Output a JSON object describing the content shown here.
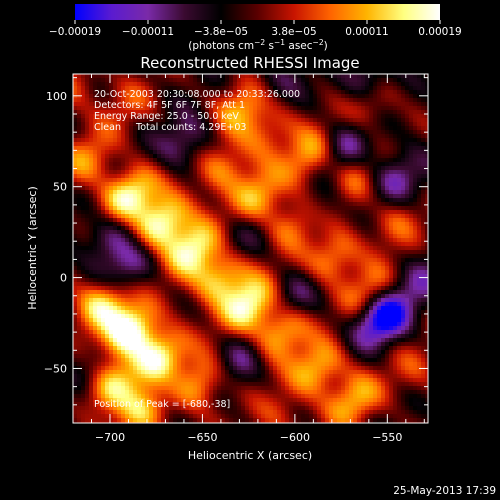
{
  "chart_data": {
    "type": "heatmap",
    "title": "Reconstructed RHESSI Image",
    "xlabel": "Heliocentric X (arcsec)",
    "ylabel": "Heliocentric Y (arcsec)",
    "xlim": [
      -720,
      -528
    ],
    "ylim": [
      -80,
      112
    ],
    "x_ticks": [
      -700,
      -650,
      -600,
      -550
    ],
    "y_ticks": [
      -50,
      0,
      50,
      100
    ],
    "x_tick_labels": [
      "−700",
      "−650",
      "−600",
      "−550"
    ],
    "y_tick_labels": [
      "−50",
      "0",
      "50",
      "100"
    ],
    "colorbar": {
      "range": [
        -0.00019,
        0.00019
      ],
      "tick_labels": [
        "−0.00019",
        "−0.00011",
        "−3.8e−05",
        "3.8e−05",
        "0.00011",
        "0.00019"
      ],
      "unit_label_parts": [
        "(photons cm",
        "−2",
        " s",
        "−1",
        " asec",
        "−2",
        ")"
      ],
      "colors": [
        "#0000ff",
        "#5a1bd0",
        "#7a2aa8",
        "#3a0a30",
        "#000000",
        "#5a0000",
        "#c81400",
        "#ff6400",
        "#ffb400",
        "#ffff80",
        "#ffffff"
      ]
    },
    "annotations": {
      "time_range": "20-Oct-2003 20:30:08.000 to 20:33:26.000",
      "detectors": "Detectors: 4F 5F 6F 7F 8F, Att 1",
      "energy_range": "Energy Range: 25.0 - 50.0 keV",
      "method_and_counts": "Clean     Total counts: 4.29E+03",
      "peak_position": "Position of Peak = [-680,-38]"
    },
    "peak": {
      "x": -680,
      "y": -38
    },
    "blobs": [
      {
        "x": -690,
        "y": 45,
        "v": 0.9
      },
      {
        "x": -672,
        "y": 30,
        "v": 1.0
      },
      {
        "x": -655,
        "y": 15,
        "v": 0.85
      },
      {
        "x": -640,
        "y": 0,
        "v": 0.75
      },
      {
        "x": -625,
        "y": -15,
        "v": 0.9
      },
      {
        "x": -608,
        "y": -30,
        "v": 0.75
      },
      {
        "x": -588,
        "y": -50,
        "v": 0.7
      },
      {
        "x": -568,
        "y": -68,
        "v": 0.6
      },
      {
        "x": -712,
        "y": 65,
        "v": 0.5
      },
      {
        "x": -705,
        "y": -15,
        "v": 0.85
      },
      {
        "x": -690,
        "y": -30,
        "v": 1.0
      },
      {
        "x": -674,
        "y": -44,
        "v": 0.9
      },
      {
        "x": -652,
        "y": -58,
        "v": 0.7
      },
      {
        "x": -700,
        "y": -60,
        "v": 0.8
      },
      {
        "x": -680,
        "y": -72,
        "v": 0.7
      },
      {
        "x": -640,
        "y": 60,
        "v": 0.5
      },
      {
        "x": -620,
        "y": 45,
        "v": 0.6
      },
      {
        "x": -600,
        "y": 30,
        "v": 0.55
      },
      {
        "x": -580,
        "y": 10,
        "v": 0.6
      },
      {
        "x": -560,
        "y": -8,
        "v": 0.5
      },
      {
        "x": -628,
        "y": 93,
        "v": 0.6
      },
      {
        "x": -615,
        "y": 80,
        "v": 0.4
      },
      {
        "x": -590,
        "y": 68,
        "v": 0.7
      },
      {
        "x": -570,
        "y": 52,
        "v": 0.45
      },
      {
        "x": -545,
        "y": 30,
        "v": 0.4
      },
      {
        "x": -720,
        "y": 105,
        "v": 0.35
      },
      {
        "x": -690,
        "y": 95,
        "v": 0.3
      },
      {
        "x": -610,
        "y": -75,
        "v": 0.3
      },
      {
        "x": -560,
        "y": 95,
        "v": 0.4
      },
      {
        "x": -535,
        "y": -50,
        "v": 0.3
      },
      {
        "x": -552,
        "y": -22,
        "v": -1.0
      },
      {
        "x": -575,
        "y": 72,
        "v": -0.55
      },
      {
        "x": -545,
        "y": 55,
        "v": -0.5
      },
      {
        "x": -690,
        "y": 5,
        "v": -0.45
      },
      {
        "x": -660,
        "y": 75,
        "v": -0.45
      },
      {
        "x": -700,
        "y": 22,
        "v": -0.45
      },
      {
        "x": -630,
        "y": -45,
        "v": -0.4
      },
      {
        "x": -600,
        "y": -10,
        "v": -0.4
      },
      {
        "x": -585,
        "y": 40,
        "v": -0.35
      },
      {
        "x": -670,
        "y": -62,
        "v": -0.35
      },
      {
        "x": -630,
        "y": 20,
        "v": -0.3
      },
      {
        "x": -560,
        "y": 110,
        "v": -0.45
      },
      {
        "x": -710,
        "y": -50,
        "v": -0.35
      },
      {
        "x": -530,
        "y": 0,
        "v": -0.3
      },
      {
        "x": -610,
        "y": 108,
        "v": -0.3
      }
    ]
  },
  "footer": {
    "timestamp": "25-May-2013 17:39"
  }
}
